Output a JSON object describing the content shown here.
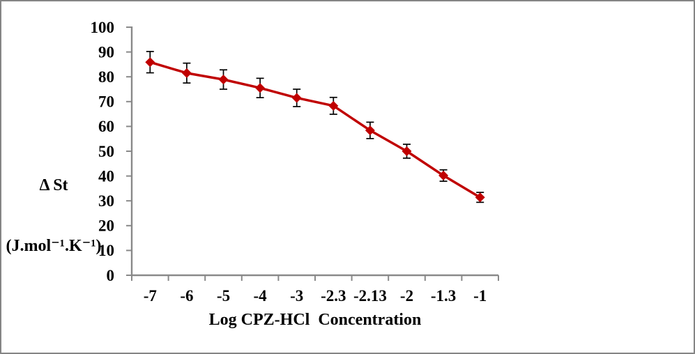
{
  "frame": {
    "background": "#FFFFFF",
    "border_color": "#858585"
  },
  "chart_data": {
    "type": "line",
    "title": "",
    "xlabel": "Log CPZ-HCl  Concentration",
    "ylabel_line1": "Δ St",
    "ylabel_line2": "(J.mol⁻¹.K⁻¹)",
    "categories": [
      "-7",
      "-6",
      "-5",
      "-4",
      "-3",
      "-2.3",
      "-2.13",
      "-2",
      "-1.3",
      "-1"
    ],
    "series": [
      {
        "name": "delta-St",
        "values": [
          85.9,
          81.5,
          78.9,
          75.5,
          71.5,
          68.3,
          58.4,
          50.0,
          40.2,
          31.4
        ],
        "error_bars": [
          4.3,
          4.0,
          3.9,
          3.9,
          3.5,
          3.4,
          3.3,
          2.8,
          2.3,
          2.0
        ],
        "color": "#C00000",
        "marker": "diamond"
      }
    ],
    "yticks": [
      0,
      10,
      20,
      30,
      40,
      50,
      60,
      70,
      80,
      90,
      100
    ],
    "ylim": [
      0,
      100
    ],
    "grid": false,
    "legend": false,
    "axis_color": "#898989",
    "error_bar_color": "#000000",
    "text_color": "#000000"
  }
}
